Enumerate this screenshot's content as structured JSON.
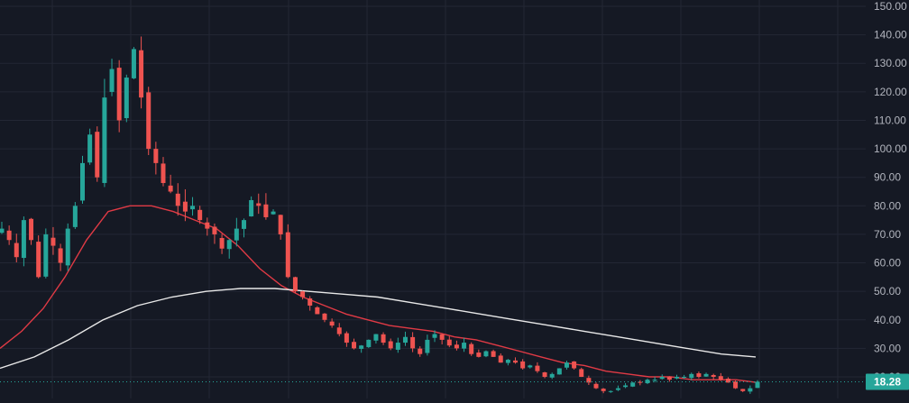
{
  "colors": {
    "background": "#151924",
    "grid": "#232734",
    "up": "#26a69a",
    "down": "#ef5350",
    "ma_fast": "#e03a45",
    "ma_slow": "#e8e8e8",
    "axis_text": "#b2b5be",
    "price_badge": "#26a69a",
    "price_line": "#26a69a"
  },
  "chart_data": {
    "type": "candlestick",
    "y_axis_ticks": [
      "150.00",
      "140.00",
      "130.00",
      "120.00",
      "110.00",
      "100.00",
      "90.00",
      "80.00",
      "70.00",
      "60.00",
      "50.00",
      "40.00",
      "30.00",
      "20.00"
    ],
    "ylim": [
      10,
      152
    ],
    "last_price_label": "18.28",
    "last_price": 18.28,
    "grid": true,
    "series": [
      {
        "kind": "price",
        "values": [
          72,
          68,
          62,
          75,
          68,
          55,
          70,
          66,
          60,
          72,
          80,
          95,
          105,
          90,
          118,
          128,
          110,
          125,
          135,
          118,
          100,
          95,
          88,
          85,
          80,
          78,
          80,
          75,
          72,
          70,
          65,
          68,
          72,
          75,
          82,
          80,
          76,
          78,
          70,
          55,
          50,
          48,
          45,
          42,
          40,
          38,
          35,
          32,
          30,
          31,
          33,
          35,
          32,
          30,
          32,
          34,
          30,
          28,
          33,
          35,
          33,
          31,
          30,
          32,
          28,
          27,
          29,
          27,
          25,
          26,
          25,
          23,
          24,
          22,
          20,
          21,
          23,
          25,
          23,
          20,
          18,
          16,
          15,
          15,
          16,
          17,
          18,
          18,
          19,
          19,
          20,
          19,
          20,
          20,
          21,
          20,
          21,
          20,
          19,
          18,
          16,
          15,
          16,
          18.28
        ]
      },
      {
        "kind": "ma_fast",
        "values": [
          30,
          36,
          44,
          55,
          68,
          78,
          80,
          80,
          78,
          75,
          72,
          66,
          58,
          52,
          48,
          45,
          42,
          40,
          38,
          37,
          36,
          34,
          33,
          31,
          29,
          27,
          25,
          24,
          22,
          21,
          20,
          20,
          19,
          19,
          19,
          18
        ]
      },
      {
        "kind": "ma_slow",
        "values": [
          23,
          27,
          33,
          40,
          45,
          48,
          50,
          51,
          51,
          50,
          49,
          48,
          46,
          44,
          42,
          40,
          38,
          36,
          34,
          32,
          30,
          28,
          27
        ]
      }
    ]
  }
}
